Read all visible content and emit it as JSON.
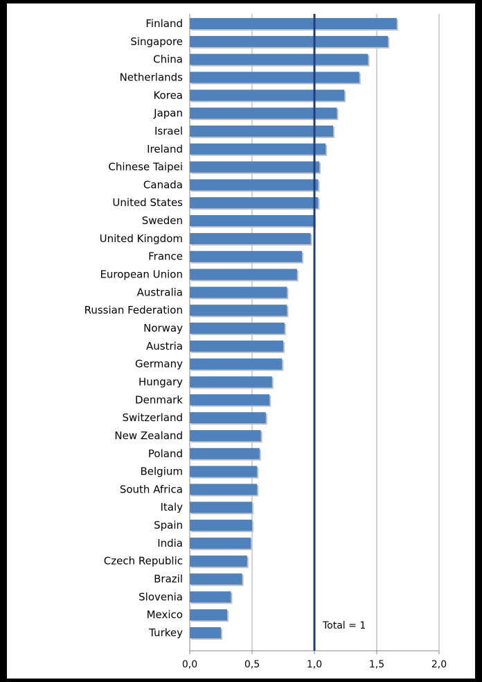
{
  "chart_data": {
    "type": "bar",
    "orientation": "horizontal",
    "categories": [
      "Finland",
      "Singapore",
      "China",
      "Netherlands",
      "Korea",
      "Japan",
      "Israel",
      "Ireland",
      "Chinese Taipei",
      "Canada",
      "United States",
      "Sweden",
      "United Kingdom",
      "France",
      "European Union",
      "Australia",
      "Russian Federation",
      "Norway",
      "Austria",
      "Germany",
      "Hungary",
      "Denmark",
      "Switzerland",
      "New Zealand",
      "Poland",
      "Belgium",
      "South Africa",
      "Italy",
      "Spain",
      "India",
      "Czech Republic",
      "Brazil",
      "Slovenia",
      "Mexico",
      "Turkey"
    ],
    "values": [
      1.66,
      1.59,
      1.43,
      1.36,
      1.24,
      1.18,
      1.15,
      1.09,
      1.04,
      1.03,
      1.03,
      1.0,
      0.97,
      0.9,
      0.86,
      0.78,
      0.78,
      0.76,
      0.75,
      0.74,
      0.66,
      0.64,
      0.61,
      0.57,
      0.56,
      0.54,
      0.54,
      0.5,
      0.5,
      0.49,
      0.46,
      0.42,
      0.33,
      0.3,
      0.25
    ],
    "xlim": [
      0,
      2.0
    ],
    "xticks": [
      "0,0",
      "0,5",
      "1,0",
      "1,5",
      "2,0"
    ],
    "xtick_values": [
      0,
      0.5,
      1.0,
      1.5,
      2.0
    ],
    "grid": "vertical",
    "reference_line": {
      "value": 1.0,
      "label": "Total = 1",
      "color": "#1f3f7a"
    },
    "bar_color": "#4f81bd",
    "grid_color": "#a6a6a6",
    "title": "",
    "xlabel": "",
    "ylabel": ""
  }
}
